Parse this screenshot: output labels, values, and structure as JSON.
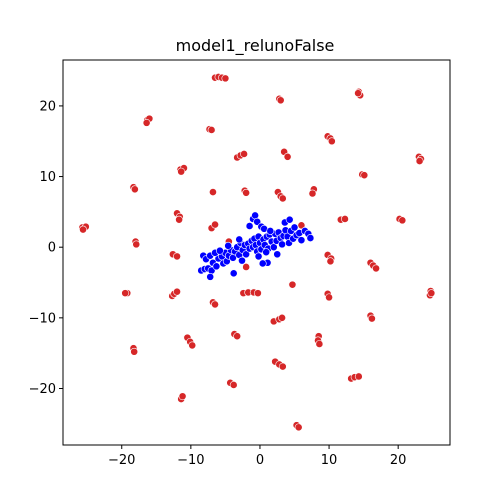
{
  "chart_data": {
    "type": "scatter",
    "title": "model1_relunoFalse",
    "xlabel": "",
    "ylabel": "",
    "xlim": [
      -28.5,
      27.5
    ],
    "ylim": [
      -28.0,
      26.5
    ],
    "x_ticks": [
      -20,
      -10,
      0,
      10,
      20
    ],
    "y_ticks": [
      -20,
      -10,
      0,
      10,
      20
    ],
    "grid": false,
    "colors": {
      "red": "#d62728",
      "blue": "#0000ff"
    },
    "series": [
      {
        "color": "red",
        "points": [
          [
            -6.5,
            24.0
          ],
          [
            -6.0,
            24.1
          ],
          [
            -5.5,
            24.0
          ],
          [
            -5.0,
            23.9
          ],
          [
            2.8,
            21.0
          ],
          [
            3.0,
            20.8
          ],
          [
            14.3,
            22.0
          ],
          [
            14.5,
            21.5
          ],
          [
            14.2,
            21.8
          ],
          [
            -16.3,
            18.0
          ],
          [
            -16.0,
            18.2
          ],
          [
            -16.4,
            17.6
          ],
          [
            -7.3,
            16.7
          ],
          [
            -7.0,
            16.6
          ],
          [
            9.8,
            15.7
          ],
          [
            10.2,
            15.4
          ],
          [
            10.4,
            15.0
          ],
          [
            23.0,
            12.8
          ],
          [
            23.3,
            12.5
          ],
          [
            23.1,
            12.2
          ],
          [
            -3.3,
            12.7
          ],
          [
            -2.8,
            13.0
          ],
          [
            -2.3,
            13.2
          ],
          [
            3.5,
            13.5
          ],
          [
            4.0,
            12.8
          ],
          [
            -11.5,
            11.0
          ],
          [
            -11.0,
            11.2
          ],
          [
            -11.4,
            10.7
          ],
          [
            14.8,
            10.3
          ],
          [
            15.1,
            10.2
          ],
          [
            -18.3,
            8.5
          ],
          [
            -18.1,
            8.2
          ],
          [
            -6.8,
            7.8
          ],
          [
            -2.2,
            8.0
          ],
          [
            -2.0,
            7.7
          ],
          [
            2.6,
            7.8
          ],
          [
            3.0,
            7.2
          ],
          [
            3.3,
            6.9
          ],
          [
            7.8,
            8.2
          ],
          [
            7.6,
            7.6
          ],
          [
            -12.0,
            4.8
          ],
          [
            -11.6,
            4.3
          ],
          [
            -11.7,
            3.9
          ],
          [
            -7.0,
            2.7
          ],
          [
            -6.5,
            3.2
          ],
          [
            5.0,
            2.8
          ],
          [
            6.0,
            3.1
          ],
          [
            11.7,
            3.9
          ],
          [
            12.3,
            4.0
          ],
          [
            20.2,
            4.0
          ],
          [
            20.6,
            3.8
          ],
          [
            -25.7,
            2.8
          ],
          [
            -25.2,
            2.9
          ],
          [
            -25.6,
            2.5
          ],
          [
            -18.0,
            0.8
          ],
          [
            -17.9,
            0.4
          ],
          [
            -12.6,
            -1.0
          ],
          [
            -12.0,
            -1.3
          ],
          [
            -4.5,
            0.8
          ],
          [
            -2.0,
            -2.8
          ],
          [
            9.8,
            -1.1
          ],
          [
            10.3,
            -1.6
          ],
          [
            10.2,
            -2.0
          ],
          [
            16.0,
            -2.2
          ],
          [
            16.4,
            -2.6
          ],
          [
            16.8,
            -3.0
          ],
          [
            -19.2,
            -6.5
          ],
          [
            -19.5,
            -6.5
          ],
          [
            -12.7,
            -6.9
          ],
          [
            -12.4,
            -6.6
          ],
          [
            -12.0,
            -6.3
          ],
          [
            -2.4,
            -6.5
          ],
          [
            -1.7,
            -6.4
          ],
          [
            -0.9,
            -6.4
          ],
          [
            -0.3,
            -6.5
          ],
          [
            4.7,
            -5.3
          ],
          [
            9.8,
            -6.6
          ],
          [
            10.0,
            -7.1
          ],
          [
            -6.8,
            -7.8
          ],
          [
            -6.5,
            -8.1
          ],
          [
            24.7,
            -6.2
          ],
          [
            24.6,
            -6.8
          ],
          [
            24.8,
            -6.5
          ],
          [
            16.0,
            -9.7
          ],
          [
            16.2,
            -10.1
          ],
          [
            2.0,
            -10.5
          ],
          [
            2.8,
            -10.2
          ],
          [
            3.2,
            -10.0
          ],
          [
            -3.7,
            -12.3
          ],
          [
            -3.3,
            -12.6
          ],
          [
            8.5,
            -12.6
          ],
          [
            8.4,
            -13.2
          ],
          [
            8.6,
            -13.7
          ],
          [
            -10.5,
            -12.8
          ],
          [
            -10.1,
            -13.4
          ],
          [
            -9.8,
            -13.9
          ],
          [
            -18.3,
            -14.3
          ],
          [
            -18.2,
            -14.8
          ],
          [
            2.2,
            -16.2
          ],
          [
            2.8,
            -16.6
          ],
          [
            3.3,
            -16.9
          ],
          [
            13.2,
            -18.6
          ],
          [
            13.7,
            -18.4
          ],
          [
            14.3,
            -18.3
          ],
          [
            -4.3,
            -19.2
          ],
          [
            -3.8,
            -19.5
          ],
          [
            -11.4,
            -21.5
          ],
          [
            -11.2,
            -21.1
          ],
          [
            5.3,
            -25.2
          ],
          [
            5.6,
            -25.5
          ]
        ]
      },
      {
        "color": "blue",
        "points": [
          [
            -8.2,
            -1.2
          ],
          [
            -7.8,
            -1.7
          ],
          [
            -7.2,
            -1.2
          ],
          [
            -8.5,
            -3.3
          ],
          [
            -8.0,
            -3.1
          ],
          [
            -7.5,
            -3.0
          ],
          [
            -7.0,
            -3.3
          ],
          [
            -7.2,
            -4.2
          ],
          [
            -6.8,
            -2.2
          ],
          [
            -6.3,
            -2.7
          ],
          [
            -6.0,
            -1.6
          ],
          [
            -6.5,
            -0.8
          ],
          [
            -5.5,
            -1.3
          ],
          [
            -5.0,
            -0.8
          ],
          [
            -5.3,
            -2.3
          ],
          [
            -4.8,
            -2.0
          ],
          [
            -4.5,
            -1.2
          ],
          [
            -4.2,
            -0.4
          ],
          [
            -3.9,
            -1.5
          ],
          [
            -3.6,
            -0.6
          ],
          [
            -3.8,
            -3.7
          ],
          [
            -3.3,
            0.0
          ],
          [
            -3.0,
            -1.1
          ],
          [
            -2.8,
            0.6
          ],
          [
            -2.5,
            -0.4
          ],
          [
            -2.2,
            0.3
          ],
          [
            -2.0,
            -1.0
          ],
          [
            -1.7,
            0.5
          ],
          [
            -1.5,
            -0.2
          ],
          [
            -1.2,
            0.9
          ],
          [
            -1.0,
            0.0
          ],
          [
            -0.8,
            1.2
          ],
          [
            -0.6,
            0.3
          ],
          [
            -0.4,
            -0.6
          ],
          [
            -0.2,
            1.5
          ],
          [
            0.0,
            0.6
          ],
          [
            0.2,
            -0.3
          ],
          [
            0.5,
            1.1
          ],
          [
            0.7,
            0.3
          ],
          [
            1.0,
            1.5
          ],
          [
            1.2,
            -0.2
          ],
          [
            1.4,
            1.8
          ],
          [
            1.7,
            0.8
          ],
          [
            2.0,
            0.0
          ],
          [
            2.2,
            1.9
          ],
          [
            2.4,
            0.9
          ],
          [
            2.7,
            2.1
          ],
          [
            3.0,
            1.3
          ],
          [
            3.2,
            0.4
          ],
          [
            3.4,
            1.6
          ],
          [
            3.7,
            2.4
          ],
          [
            4.0,
            1.5
          ],
          [
            4.2,
            0.6
          ],
          [
            4.5,
            2.3
          ],
          [
            4.8,
            1.2
          ],
          [
            5.0,
            2.8
          ],
          [
            5.3,
            1.7
          ],
          [
            5.7,
            2.0
          ],
          [
            6.0,
            1.0
          ],
          [
            6.5,
            2.3
          ],
          [
            7.0,
            1.9
          ],
          [
            7.3,
            1.3
          ],
          [
            -1.0,
            4.0
          ],
          [
            -0.7,
            4.5
          ],
          [
            -0.4,
            3.6
          ],
          [
            -1.5,
            3.0
          ],
          [
            0.2,
            2.9
          ],
          [
            0.6,
            2.6
          ],
          [
            -3.0,
            1.1
          ],
          [
            -4.6,
            0.2
          ],
          [
            -5.8,
            -0.5
          ],
          [
            -2.6,
            -1.9
          ],
          [
            0.9,
            -0.7
          ],
          [
            1.5,
            2.3
          ],
          [
            3.6,
            3.5
          ],
          [
            4.3,
            3.9
          ],
          [
            1.1,
            -2.2
          ],
          [
            2.5,
            -1.0
          ],
          [
            -0.2,
            -1.3
          ],
          [
            0.4,
            -2.3
          ]
        ]
      }
    ]
  }
}
